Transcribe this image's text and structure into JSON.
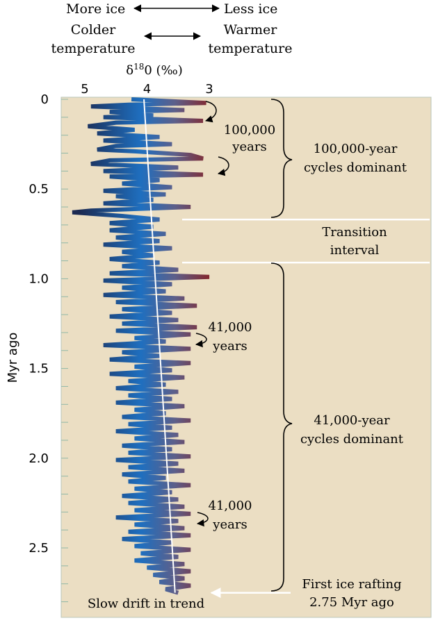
{
  "chart_data": {
    "type": "line",
    "ylabel": "Myr ago",
    "ylim": [
      0,
      2.85
    ],
    "xlim": [
      5.3,
      2.8
    ],
    "x_reversed": true,
    "y_reversed": true,
    "x_axis_label": {
      "prefix": "δ",
      "superscript": "18",
      "suffix": "0 (‰)"
    },
    "x_ticks": [
      {
        "value": 5,
        "label": "5"
      },
      {
        "value": 4,
        "label": "4"
      },
      {
        "value": 3,
        "label": "3"
      }
    ],
    "y_ticks": [
      {
        "value": 0,
        "label": "0"
      },
      {
        "value": 0.5,
        "label": "0.5"
      },
      {
        "value": 1.0,
        "label": "1.0"
      },
      {
        "value": 1.5,
        "label": "1.5"
      },
      {
        "value": 2.0,
        "label": "2.0"
      },
      {
        "value": 2.5,
        "label": "2.5"
      }
    ],
    "header": {
      "ice_left": "More ice",
      "ice_right": "Less ice",
      "temp_left_line1": "Colder",
      "temp_left_line2": "temperature",
      "temp_right_line1": "Warmer",
      "temp_right_line2": "temperature"
    },
    "trend_line": {
      "start": [
        4.05,
        0
      ],
      "end": [
        3.55,
        2.75
      ]
    },
    "annotations": {
      "cycle_100k_line1": "100,000",
      "cycle_100k_line2": "years",
      "cycle_41k_a_line1": "41,000",
      "cycle_41k_a_line2": "years",
      "cycle_41k_b_line1": "41,000",
      "cycle_41k_b_line2": "years",
      "slow_drift": "Slow drift in trend"
    },
    "regions": {
      "dominant_100k_line1": "100,000-year",
      "dominant_100k_line2": "cycles dominant",
      "transition_line1": "Transition",
      "transition_line2": "interval",
      "dominant_41k_line1": "41,000-year",
      "dominant_41k_line2": "cycles dominant",
      "first_ice_line1": "First ice rafting",
      "first_ice_line2": "2.75 Myr ago"
    },
    "region_boundaries": [
      0.67,
      0.91
    ],
    "first_ice_rafting_age": 2.75,
    "colors": {
      "panel": "#ebdec3",
      "trend_line": "#ffffff",
      "cold": "#1f6fbf",
      "warm": "#8a1e1e",
      "cold_dark": "#1b2a52"
    },
    "series": [
      {
        "values": [
          [
            4.25,
            0.0
          ],
          [
            3.05,
            0.02
          ],
          [
            4.3,
            0.03
          ],
          [
            4.9,
            0.04
          ],
          [
            3.4,
            0.06
          ],
          [
            4.6,
            0.07
          ],
          [
            3.9,
            0.09
          ],
          [
            4.7,
            0.1
          ],
          [
            3.1,
            0.12
          ],
          [
            4.5,
            0.13
          ],
          [
            4.95,
            0.15
          ],
          [
            4.2,
            0.17
          ],
          [
            4.8,
            0.19
          ],
          [
            3.8,
            0.21
          ],
          [
            4.7,
            0.23
          ],
          [
            3.6,
            0.25
          ],
          [
            4.5,
            0.26
          ],
          [
            4.8,
            0.28
          ],
          [
            4.2,
            0.29
          ],
          [
            3.3,
            0.31
          ],
          [
            3.1,
            0.33
          ],
          [
            4.6,
            0.34
          ],
          [
            4.9,
            0.36
          ],
          [
            3.5,
            0.38
          ],
          [
            4.7,
            0.4
          ],
          [
            3.1,
            0.42
          ],
          [
            4.6,
            0.43
          ],
          [
            3.8,
            0.45
          ],
          [
            4.4,
            0.47
          ],
          [
            3.6,
            0.49
          ],
          [
            4.7,
            0.51
          ],
          [
            3.7,
            0.53
          ],
          [
            4.5,
            0.54
          ],
          [
            3.9,
            0.56
          ],
          [
            4.7,
            0.58
          ],
          [
            3.3,
            0.6
          ],
          [
            4.9,
            0.62
          ],
          [
            5.2,
            0.63
          ],
          [
            4.4,
            0.65
          ],
          [
            3.8,
            0.67
          ],
          [
            4.6,
            0.69
          ],
          [
            3.9,
            0.71
          ],
          [
            4.6,
            0.73
          ],
          [
            3.7,
            0.75
          ],
          [
            4.5,
            0.77
          ],
          [
            3.8,
            0.79
          ],
          [
            4.7,
            0.81
          ],
          [
            3.6,
            0.83
          ],
          [
            4.4,
            0.85
          ],
          [
            3.9,
            0.87
          ],
          [
            4.6,
            0.89
          ],
          [
            3.8,
            0.91
          ],
          [
            4.4,
            0.93
          ],
          [
            3.5,
            0.95
          ],
          [
            4.6,
            0.97
          ],
          [
            3.0,
            0.99
          ],
          [
            4.7,
            1.01
          ],
          [
            3.6,
            1.03
          ],
          [
            4.4,
            1.05
          ],
          [
            3.7,
            1.07
          ],
          [
            4.7,
            1.09
          ],
          [
            3.4,
            1.11
          ],
          [
            4.5,
            1.13
          ],
          [
            3.2,
            1.15
          ],
          [
            4.4,
            1.17
          ],
          [
            3.6,
            1.19
          ],
          [
            4.6,
            1.21
          ],
          [
            3.5,
            1.23
          ],
          [
            4.4,
            1.25
          ],
          [
            3.2,
            1.27
          ],
          [
            4.5,
            1.29
          ],
          [
            3.3,
            1.31
          ],
          [
            4.2,
            1.33
          ],
          [
            3.7,
            1.35
          ],
          [
            4.7,
            1.37
          ],
          [
            3.3,
            1.39
          ],
          [
            4.4,
            1.41
          ],
          [
            3.8,
            1.43
          ],
          [
            4.6,
            1.45
          ],
          [
            3.3,
            1.47
          ],
          [
            4.2,
            1.49
          ],
          [
            3.6,
            1.51
          ],
          [
            4.6,
            1.53
          ],
          [
            3.4,
            1.55
          ],
          [
            4.3,
            1.57
          ],
          [
            3.7,
            1.59
          ],
          [
            4.5,
            1.61
          ],
          [
            3.5,
            1.63
          ],
          [
            4.3,
            1.65
          ],
          [
            3.6,
            1.67
          ],
          [
            4.5,
            1.69
          ],
          [
            3.4,
            1.71
          ],
          [
            4.2,
            1.73
          ],
          [
            3.7,
            1.75
          ],
          [
            4.4,
            1.77
          ],
          [
            3.3,
            1.79
          ],
          [
            4.3,
            1.81
          ],
          [
            3.6,
            1.83
          ],
          [
            4.5,
            1.85
          ],
          [
            3.5,
            1.87
          ],
          [
            4.2,
            1.89
          ],
          [
            3.4,
            1.91
          ],
          [
            4.4,
            1.93
          ],
          [
            3.6,
            1.95
          ],
          [
            4.3,
            1.97
          ],
          [
            3.3,
            1.99
          ],
          [
            4.5,
            2.01
          ],
          [
            3.5,
            2.03
          ],
          [
            4.3,
            2.05
          ],
          [
            3.4,
            2.07
          ],
          [
            4.4,
            2.09
          ],
          [
            3.7,
            2.11
          ],
          [
            4.3,
            2.13
          ],
          [
            3.3,
            2.15
          ],
          [
            4.2,
            2.17
          ],
          [
            3.6,
            2.19
          ],
          [
            4.4,
            2.21
          ],
          [
            3.5,
            2.23
          ],
          [
            4.3,
            2.25
          ],
          [
            3.4,
            2.27
          ],
          [
            4.2,
            2.29
          ],
          [
            3.3,
            2.31
          ],
          [
            4.5,
            2.33
          ],
          [
            3.5,
            2.35
          ],
          [
            4.2,
            2.37
          ],
          [
            3.4,
            2.39
          ],
          [
            4.3,
            2.41
          ],
          [
            3.3,
            2.43
          ],
          [
            4.4,
            2.45
          ],
          [
            3.6,
            2.47
          ],
          [
            4.2,
            2.49
          ],
          [
            3.3,
            2.51
          ],
          [
            4.1,
            2.53
          ],
          [
            3.5,
            2.55
          ],
          [
            4.2,
            2.57
          ],
          [
            3.4,
            2.59
          ],
          [
            4.0,
            2.61
          ],
          [
            3.3,
            2.63
          ],
          [
            3.9,
            2.65
          ],
          [
            3.4,
            2.67
          ],
          [
            3.8,
            2.69
          ],
          [
            3.3,
            2.71
          ],
          [
            3.7,
            2.73
          ],
          [
            3.5,
            2.75
          ]
        ]
      }
    ]
  }
}
